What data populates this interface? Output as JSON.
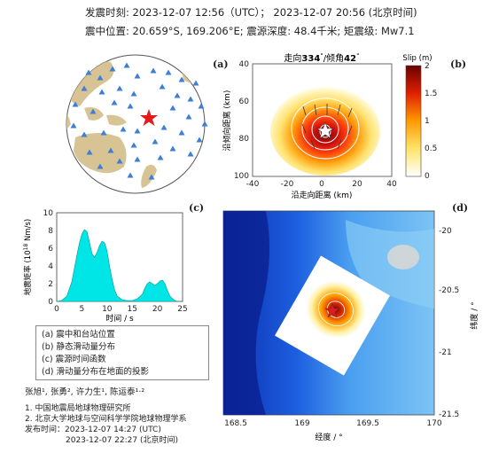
{
  "header": {
    "origin_time_label": "发震时刻:",
    "origin_time_utc": "2023-12-07 12:56（UTC）；",
    "origin_time_local": "2023-12-07 20:56 (北京时间)",
    "epicenter_label": "震中位置:",
    "epicenter_lat": "20.659°S,",
    "epicenter_lon": "169.206°E;",
    "depth_text": "震源深度: 48.4千米;",
    "magnitude_text": "矩震级: Mw7.1"
  },
  "panels": {
    "a": "(a)",
    "b": "(b)",
    "c": "(c)",
    "d": "(d)"
  },
  "colors": {
    "land": "#d8c394",
    "ocean": "#ffffff",
    "station": "#3b7fd6",
    "epicenter": "#e31a1c",
    "stf_fill": "#00e5e5"
  },
  "chart_data": [
    {
      "type": "scatter",
      "panel": "a",
      "description_items": [
        "stations",
        "epicenter"
      ]
    },
    {
      "type": "heatmap",
      "panel": "b",
      "title_prefix": "走向",
      "strike": "334",
      "dip_label": "/倾角",
      "dip": "42",
      "xlabel": "沿走向距离 (km)",
      "ylabel": "沿倾向距离 (km)",
      "xlim": [
        -40,
        40
      ],
      "ylim": [
        100,
        40
      ],
      "xticks": [
        "-40",
        "-20",
        "0",
        "20",
        "40"
      ],
      "yticks": [
        "40",
        "60",
        "80",
        "100"
      ],
      "colorbar_label": "Slip (m)",
      "colorbar_ticks": [
        "0",
        "0.5",
        "1",
        "1.5",
        "2"
      ],
      "clim": [
        0,
        2
      ],
      "peak_slip": 2.0,
      "peak_location": [
        0,
        75
      ]
    },
    {
      "type": "area",
      "panel": "c",
      "ylabel": "地震矩率 (10",
      "ylabel_exp": "18",
      "ylabel_unit": " Nm/s)",
      "xlabel": "时间 / s",
      "xlim": [
        0,
        25
      ],
      "ylim": [
        0,
        10
      ],
      "xticks": [
        "0",
        "5",
        "10",
        "15",
        "20",
        "25"
      ],
      "yticks": [
        "0",
        "2",
        "4",
        "6",
        "8",
        "10"
      ],
      "x": [
        0,
        1,
        2,
        3,
        4,
        4.5,
        5,
        5.5,
        6,
        6.5,
        7,
        7.5,
        8,
        8.5,
        9,
        9.5,
        10,
        10.5,
        11,
        11.5,
        12,
        12.5,
        13,
        14,
        15,
        16,
        17,
        17.5,
        18,
        18.5,
        19,
        19.5,
        20,
        20.5,
        21,
        21.5,
        22,
        22.5,
        23,
        23.5,
        24
      ],
      "values": [
        0,
        0.1,
        0.6,
        2.2,
        5.2,
        6.6,
        7.6,
        8.1,
        7.9,
        6.7,
        5.4,
        5.0,
        5.5,
        6.3,
        6.8,
        6.6,
        5.7,
        4.0,
        2.5,
        1.3,
        0.6,
        0.4,
        0.2,
        0.1,
        0.1,
        0.3,
        0.8,
        1.5,
        2.0,
        2.2,
        2.0,
        1.8,
        2.0,
        2.3,
        2.4,
        2.0,
        1.2,
        0.6,
        0.3,
        0.1,
        0
      ]
    },
    {
      "type": "heatmap",
      "panel": "d",
      "xlabel": "经度 / °",
      "ylabel": "纬度 / °",
      "xlim": [
        168.4,
        170
      ],
      "ylim": [
        -21.5,
        -19.8
      ],
      "xticks": [
        "168.5",
        "169",
        "169.5",
        "170"
      ],
      "yticks": [
        "-20",
        "-20.5",
        "-21",
        "-21.5"
      ],
      "epicenter": [
        169.206,
        -20.659
      ]
    }
  ],
  "legend": {
    "items": [
      "(a) 震中和台站位置",
      "(b) 静态滑动量分布",
      "(c) 震源时间函数",
      "(d) 滑动量分布在地面的投影"
    ]
  },
  "credits": {
    "authors": "张旭¹, 张勇², 许力生¹, 陈运泰¹·²",
    "affil1": "1. 中国地震局地球物理研究所",
    "affil2": "2. 北京大学地球与空间科学学院地球物理学系",
    "release_label": "发布时间：",
    "release_utc": "2023-12-07 14:27 (UTC)",
    "release_local": "2023-12-07 22:27 (北京时间)"
  }
}
